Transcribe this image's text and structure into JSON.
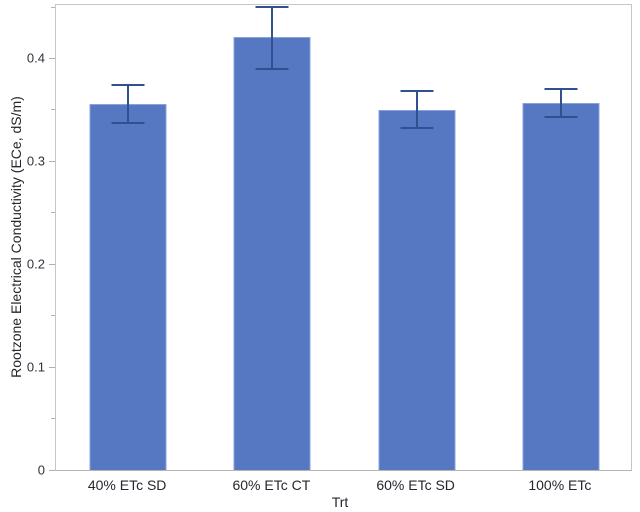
{
  "chart_data": {
    "type": "bar",
    "title": "",
    "xlabel": "Trt",
    "ylabel": "Rootzone Electrical Conductivity (ECe, dS/m)",
    "categories": [
      "40% ETc SD",
      "60% ETc CT",
      "60% ETc SD",
      "100% ETc"
    ],
    "values": [
      0.356,
      0.421,
      0.35,
      0.357
    ],
    "error_upper": [
      0.374,
      0.45,
      0.368,
      0.37
    ],
    "error_lower": [
      0.337,
      0.39,
      0.332,
      0.343
    ],
    "ylim": [
      0,
      0.452
    ],
    "yticks_major": [
      0,
      0.1,
      0.2,
      0.3,
      0.4
    ],
    "ytick_labels": [
      "0",
      "0.1",
      "0.2",
      "0.3",
      "0.4"
    ],
    "yticks_minor": [
      0.05,
      0.15,
      0.25,
      0.35,
      0.45
    ],
    "grid": false,
    "legend": false
  },
  "colors": {
    "background": "#ffffff",
    "bar_fill": "#5677c1",
    "bar_edge": "#8ba1d8",
    "error_bar": "#30508f",
    "frame": "#c6c6c6",
    "tick_mark": "#b0b0b0",
    "tick_label": "#32323c",
    "text": "#26262e"
  }
}
